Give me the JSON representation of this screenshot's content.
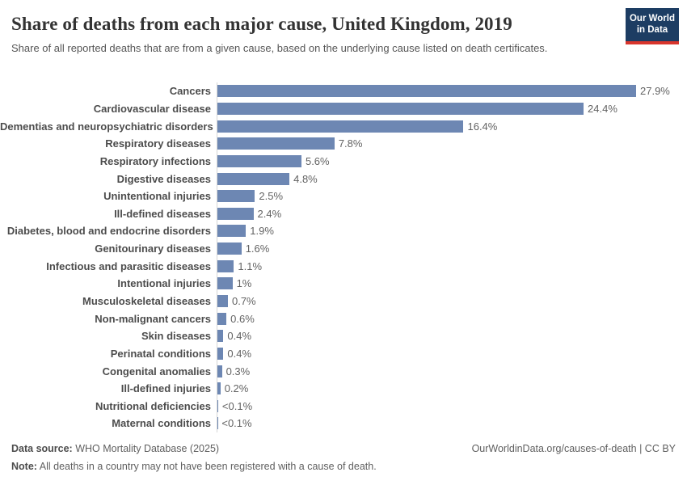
{
  "header": {
    "title": "Share of deaths from each major cause, United Kingdom, 2019",
    "subtitle": "Share of all reported deaths that are from a given cause, based on the underlying cause listed on death certificates.",
    "logo": {
      "line1": "Our World",
      "line2": "in Data"
    }
  },
  "chart_data": {
    "type": "bar",
    "orientation": "horizontal",
    "title": "Share of deaths from each major cause, United Kingdom, 2019",
    "unit": "%",
    "grid": false,
    "xlim": [
      0,
      27.9
    ],
    "bar_color": "#6d87b3",
    "categories": [
      "Cancers",
      "Cardiovascular disease",
      "Dementias and neuropsychiatric disorders",
      "Respiratory diseases",
      "Respiratory infections",
      "Digestive diseases",
      "Unintentional injuries",
      "Ill-defined diseases",
      "Diabetes, blood and endocrine disorders",
      "Genitourinary diseases",
      "Infectious and parasitic diseases",
      "Intentional injuries",
      "Musculoskeletal diseases",
      "Non-malignant cancers",
      "Skin diseases",
      "Perinatal conditions",
      "Congenital anomalies",
      "Ill-defined injuries",
      "Nutritional deficiencies",
      "Maternal conditions"
    ],
    "values": [
      27.9,
      24.4,
      16.4,
      7.8,
      5.6,
      4.8,
      2.5,
      2.4,
      1.9,
      1.6,
      1.1,
      1,
      0.7,
      0.6,
      0.4,
      0.4,
      0.3,
      0.2,
      0.05,
      0.02
    ],
    "value_labels": [
      "27.9%",
      "24.4%",
      "16.4%",
      "7.8%",
      "5.6%",
      "4.8%",
      "2.5%",
      "2.4%",
      "1.9%",
      "1.6%",
      "1.1%",
      "1%",
      "0.7%",
      "0.6%",
      "0.4%",
      "0.4%",
      "0.3%",
      "0.2%",
      "<0.1%",
      "<0.1%"
    ]
  },
  "footer": {
    "source_label": "Data source:",
    "source_value": "WHO Mortality Database (2025)",
    "note_label": "Note:",
    "note_value": "All deaths in a country may not have been registered with a cause of death.",
    "link": "OurWorldinData.org/causes-of-death | CC BY"
  },
  "colors": {
    "bar": "#6d87b3",
    "axis_line": "#d7d7d7",
    "logo_navy": "#1d3d63",
    "logo_red": "#d8352c"
  }
}
